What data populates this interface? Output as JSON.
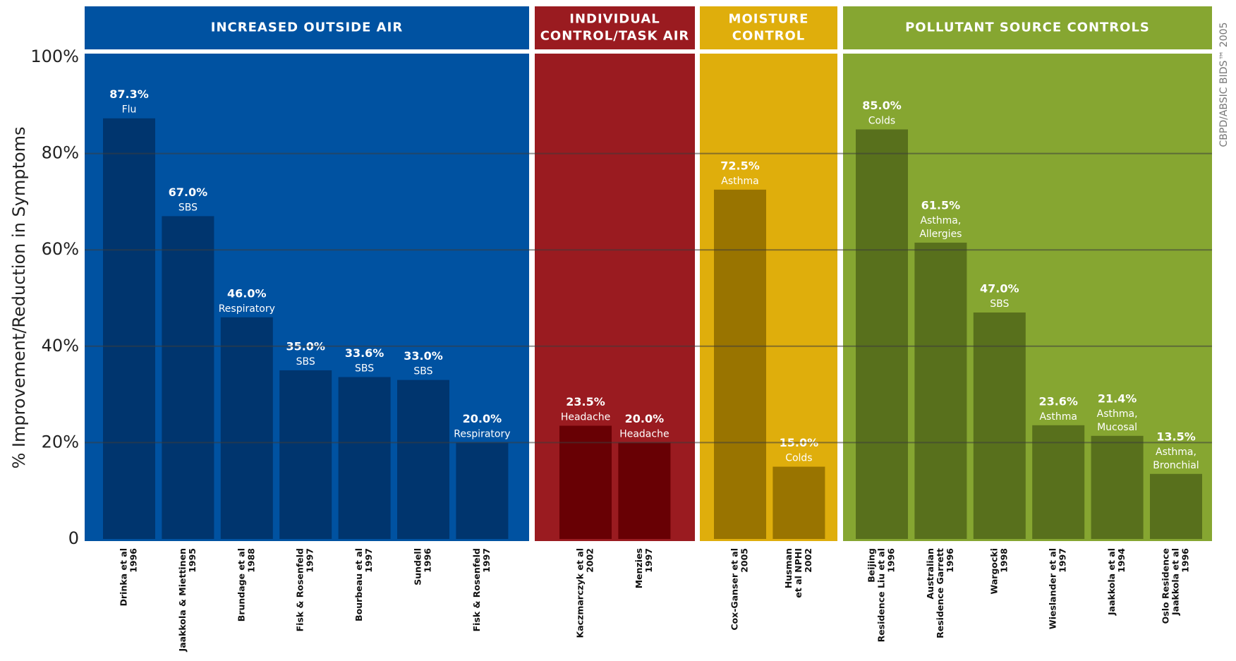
{
  "chart_data": {
    "type": "bar",
    "y_label": "% Improvement/Reduction in Symptoms",
    "credit": "CBPD/ABSIC BIDS™ 2005",
    "ylim": [
      0,
      100
    ],
    "yticks": [
      0,
      {
        "value": 20,
        "label": "20%"
      },
      {
        "value": 40,
        "label": "40%"
      },
      {
        "value": 60,
        "label": "60%"
      },
      {
        "value": 80,
        "label": "80%"
      },
      {
        "value": 100,
        "label": "100%"
      }
    ],
    "grid": true,
    "series": [
      {
        "name": [
          "INCREASED OUTSIDE AIR"
        ],
        "color": "#0052a1",
        "bar_color": "#00356e",
        "categories": [
          [
            "Drinka et al",
            "1996"
          ],
          [
            "Jaakkola & Miettinen",
            "1995"
          ],
          [
            "Brundage et al",
            "1988"
          ],
          [
            "Fisk & Rosenfeld",
            "1997"
          ],
          [
            "Bourbeau et al",
            "1997"
          ],
          [
            "Sundell",
            "1996"
          ],
          [
            "Fisk & Rosenfeld",
            "1997"
          ]
        ],
        "values": [
          87.3,
          67.0,
          46.0,
          35.0,
          33.6,
          33.0,
          20.0
        ],
        "value_labels": [
          "87.3%",
          "67.0%",
          "46.0%",
          "35.0%",
          "33.6%",
          "33.0%",
          "20.0%"
        ],
        "symptoms": [
          [
            "Flu"
          ],
          [
            "SBS"
          ],
          [
            "Respiratory"
          ],
          [
            "SBS"
          ],
          [
            "SBS"
          ],
          [
            "SBS"
          ],
          [
            "Respiratory"
          ]
        ]
      },
      {
        "name": [
          "INDIVIDUAL",
          "CONTROL/TASK AIR"
        ],
        "color": "#9a1b20",
        "bar_color": "#680004",
        "categories": [
          [
            "Kaczmarczyk et al",
            "2002"
          ],
          [
            "Menzies",
            "1997"
          ]
        ],
        "values": [
          23.5,
          20.0
        ],
        "value_labels": [
          "23.5%",
          "20.0%"
        ],
        "symptoms": [
          [
            "Headache"
          ],
          [
            "Headache"
          ]
        ]
      },
      {
        "name": [
          "MOISTURE",
          "CONTROL"
        ],
        "color": "#dfae0c",
        "bar_color": "#997400",
        "categories": [
          [
            "Cox-Ganser et al",
            "2005"
          ],
          [
            "Husman",
            "et al NPHI",
            "2002"
          ]
        ],
        "values": [
          72.5,
          15.0
        ],
        "value_labels": [
          "72.5%",
          "15.0%"
        ],
        "symptoms": [
          [
            "Asthma"
          ],
          [
            "Colds"
          ]
        ]
      },
      {
        "name": [
          "POLLUTANT SOURCE CONTROLS"
        ],
        "color": "#86a631",
        "bar_color": "#58701c",
        "categories": [
          [
            "Beijing",
            "Residence Liu et al",
            "1996"
          ],
          [
            "Australian",
            "Residence Garrett",
            "1996"
          ],
          [
            "Wargocki",
            "1998"
          ],
          [
            "Wieslander et al",
            "1997"
          ],
          [
            "Jaakkola et al",
            "1994"
          ],
          [
            "Oslo Residence",
            "Jaakkola et al",
            "1996"
          ]
        ],
        "values": [
          85.0,
          61.5,
          47.0,
          23.6,
          21.4,
          13.5
        ],
        "value_labels": [
          "85.0%",
          "61.5%",
          "47.0%",
          "23.6%",
          "21.4%",
          "13.5%"
        ],
        "symptoms": [
          [
            "Colds"
          ],
          [
            "Asthma,",
            "Allergies"
          ],
          [
            "SBS"
          ],
          [
            "Asthma"
          ],
          [
            "Asthma,",
            "Mucosal"
          ],
          [
            "Asthma,",
            "Bronchial"
          ]
        ]
      }
    ]
  }
}
